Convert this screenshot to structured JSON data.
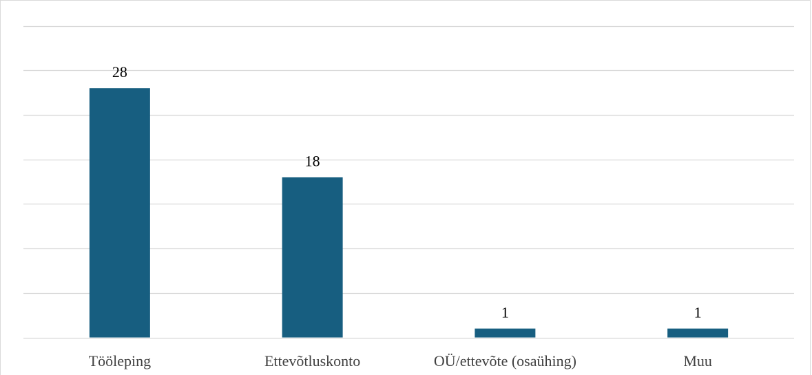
{
  "chart_data": {
    "type": "bar",
    "categories": [
      "Tööleping",
      "Ettevõtluskonto",
      "OÜ/ettevõte (osaühing)",
      "Muu"
    ],
    "values": [
      28,
      18,
      1,
      1
    ],
    "value_labels": [
      "28",
      "18",
      "1",
      "1"
    ],
    "title": "",
    "xlabel": "",
    "ylabel": "",
    "ylim": [
      0,
      35
    ],
    "grid": true,
    "legend": "none",
    "colors": {
      "bar": "#175e80",
      "grid": "#d9d9d9",
      "axis": "#d9d9d9"
    }
  }
}
